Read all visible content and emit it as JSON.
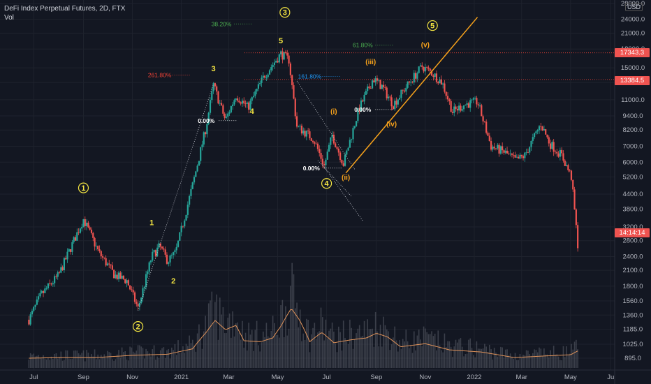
{
  "header": {
    "title": "DeFi Index Perpetual Futures, 2D, FTX",
    "indicator": "Vol",
    "currency": "USD"
  },
  "colors": {
    "background": "#131722",
    "up": "#26a69a",
    "down": "#ef5350",
    "volume_line": "#e0935a",
    "trendline": "#f7a21b",
    "wave_label": "#f5e642",
    "fib_green": "#4caf50",
    "fib_red": "#f44336",
    "fib_blue": "#2196f3"
  },
  "price_badges": [
    {
      "value": "17343.3",
      "color": "#ef5350"
    },
    {
      "value": "13384.5",
      "color": "#ef5350"
    },
    {
      "value": "14:14:14",
      "color": "#ef5350"
    }
  ],
  "chart_data": {
    "type": "candlestick",
    "y_scale": "log",
    "y_ticks": [
      "28000.0",
      "24000.0",
      "21000.0",
      "18000.0",
      "15000.0",
      "13000.0",
      "11000.0",
      "9400.0",
      "8200.0",
      "7000.0",
      "6000.0",
      "5200.0",
      "4400.0",
      "3800.0",
      "3200.0",
      "2800.0",
      "2400.0",
      "2100.0",
      "1800.0",
      "1560.0",
      "1360.0",
      "1185.0",
      "1025.0",
      "895.0"
    ],
    "x_ticks": [
      "Jul",
      "Sep",
      "Nov",
      "2021",
      "Mar",
      "May",
      "Jul",
      "Sep",
      "Nov",
      "2022",
      "Mar",
      "May",
      "Ju"
    ],
    "price_path": [
      [
        "2020-06-25",
        1300
      ],
      [
        "2020-07-10",
        1650
      ],
      [
        "2020-08-01",
        2000
      ],
      [
        "2020-08-20",
        2800
      ],
      [
        "2020-09-01",
        3450
      ],
      [
        "2020-09-20",
        2500
      ],
      [
        "2020-10-10",
        2000
      ],
      [
        "2020-10-25",
        1900
      ],
      [
        "2020-11-08",
        1450
      ],
      [
        "2020-11-25",
        2400
      ],
      [
        "2020-12-05",
        2650
      ],
      [
        "2020-12-15",
        2300
      ],
      [
        "2020-12-25",
        2500
      ],
      [
        "2021-01-15",
        4800
      ],
      [
        "2021-02-01",
        8500
      ],
      [
        "2021-02-10",
        12700
      ],
      [
        "2021-02-25",
        9000
      ],
      [
        "2021-03-10",
        11500
      ],
      [
        "2021-03-25",
        10200
      ],
      [
        "2021-04-15",
        14000
      ],
      [
        "2021-05-05",
        17200
      ],
      [
        "2021-05-15",
        16200
      ],
      [
        "2021-05-25",
        8500
      ],
      [
        "2021-06-15",
        7500
      ],
      [
        "2021-06-28",
        5800
      ],
      [
        "2021-07-08",
        7800
      ],
      [
        "2021-07-22",
        5900
      ],
      [
        "2021-08-10",
        10000
      ],
      [
        "2021-08-28",
        13500
      ],
      [
        "2021-09-08",
        12500
      ],
      [
        "2021-09-22",
        10500
      ],
      [
        "2021-10-10",
        12700
      ],
      [
        "2021-10-28",
        15200
      ],
      [
        "2021-11-10",
        14200
      ],
      [
        "2021-11-22",
        13000
      ],
      [
        "2021-12-05",
        9800
      ],
      [
        "2021-12-20",
        10500
      ],
      [
        "2022-01-05",
        10800
      ],
      [
        "2022-01-22",
        7000
      ],
      [
        "2022-02-08",
        6600
      ],
      [
        "2022-02-22",
        6100
      ],
      [
        "2022-03-05",
        6400
      ],
      [
        "2022-03-25",
        8700
      ],
      [
        "2022-04-05",
        7200
      ],
      [
        "2022-04-20",
        6400
      ],
      [
        "2022-05-02",
        5200
      ],
      [
        "2022-05-10",
        2700
      ]
    ],
    "volume_profile": [
      [
        "2020-06-25",
        895
      ],
      [
        "2020-08-01",
        900
      ],
      [
        "2020-09-15",
        900
      ],
      [
        "2020-11-01",
        920
      ],
      [
        "2020-12-15",
        930
      ],
      [
        "2021-01-15",
        980
      ],
      [
        "2021-02-01",
        1150
      ],
      [
        "2021-02-12",
        1290
      ],
      [
        "2021-02-25",
        1180
      ],
      [
        "2021-03-10",
        1230
      ],
      [
        "2021-03-20",
        1060
      ],
      [
        "2021-04-10",
        1050
      ],
      [
        "2021-04-25",
        1090
      ],
      [
        "2021-05-05",
        1220
      ],
      [
        "2021-05-18",
        1450
      ],
      [
        "2021-05-28",
        1300
      ],
      [
        "2021-06-10",
        1050
      ],
      [
        "2021-06-25",
        1150
      ],
      [
        "2021-07-10",
        1040
      ],
      [
        "2021-08-01",
        1070
      ],
      [
        "2021-08-20",
        1090
      ],
      [
        "2021-09-01",
        1140
      ],
      [
        "2021-09-15",
        1100
      ],
      [
        "2021-10-01",
        1000
      ],
      [
        "2021-11-01",
        1030
      ],
      [
        "2021-12-01",
        970
      ],
      [
        "2022-01-10",
        950
      ],
      [
        "2022-02-20",
        900
      ],
      [
        "2022-04-01",
        915
      ],
      [
        "2022-05-01",
        925
      ],
      [
        "2022-05-10",
        960
      ]
    ],
    "elliott_waves": [
      {
        "label": "1",
        "circled": true,
        "date": "2020-09-01",
        "price": 4550
      },
      {
        "label": "2",
        "circled": true,
        "date": "2020-11-08",
        "price": 1185
      },
      {
        "label": "3",
        "circled": true,
        "date": "2021-05-10",
        "price": 25000
      },
      {
        "label": "4",
        "circled": true,
        "date": "2021-07-01",
        "price": 4750
      },
      {
        "label": "5",
        "circled": true,
        "date": "2021-11-10",
        "price": 22000
      },
      {
        "label": "1",
        "circled": false,
        "date": "2020-11-25",
        "price": 3250
      },
      {
        "label": "2",
        "circled": false,
        "date": "2020-12-22",
        "price": 1850
      },
      {
        "label": "3",
        "circled": false,
        "date": "2021-02-10",
        "price": 14500
      },
      {
        "label": "4",
        "circled": false,
        "date": "2021-03-30",
        "price": 9600
      },
      {
        "label": "5",
        "circled": false,
        "date": "2021-05-05",
        "price": 19000
      },
      {
        "label": "(i)",
        "circled": false,
        "date": "2021-07-10",
        "price": 9600
      },
      {
        "label": "(ii)",
        "circled": false,
        "date": "2021-07-25",
        "price": 5050
      },
      {
        "label": "(iii)",
        "circled": false,
        "date": "2021-08-25",
        "price": 15500
      },
      {
        "label": "(iv)",
        "circled": false,
        "date": "2021-09-20",
        "price": 8500
      },
      {
        "label": "(v)",
        "circled": false,
        "date": "2021-11-01",
        "price": 18300
      }
    ],
    "fib_labels": [
      {
        "text": "38.20%",
        "color": "green",
        "date": "2021-02-20",
        "price": 22500
      },
      {
        "text": "61.80%",
        "color": "green",
        "date": "2021-08-15",
        "price": 18300
      },
      {
        "text": "261.80%",
        "color": "red",
        "date": "2020-12-05",
        "price": 13700
      },
      {
        "text": "161.80%",
        "color": "blue",
        "date": "2021-06-10",
        "price": 13500
      },
      {
        "text": "0.00%",
        "color": "white",
        "date": "2021-02-01",
        "price": 8800
      },
      {
        "text": "0.00%",
        "color": "white",
        "date": "2021-06-12",
        "price": 5550
      },
      {
        "text": "0.00%",
        "color": "white",
        "date": "2021-08-15",
        "price": 9800
      }
    ],
    "horizontal_levels": [
      17343.3,
      13384.5
    ],
    "trendline": [
      [
        "2021-07-25",
        5400
      ],
      [
        "2022-01-05",
        24500
      ]
    ]
  }
}
